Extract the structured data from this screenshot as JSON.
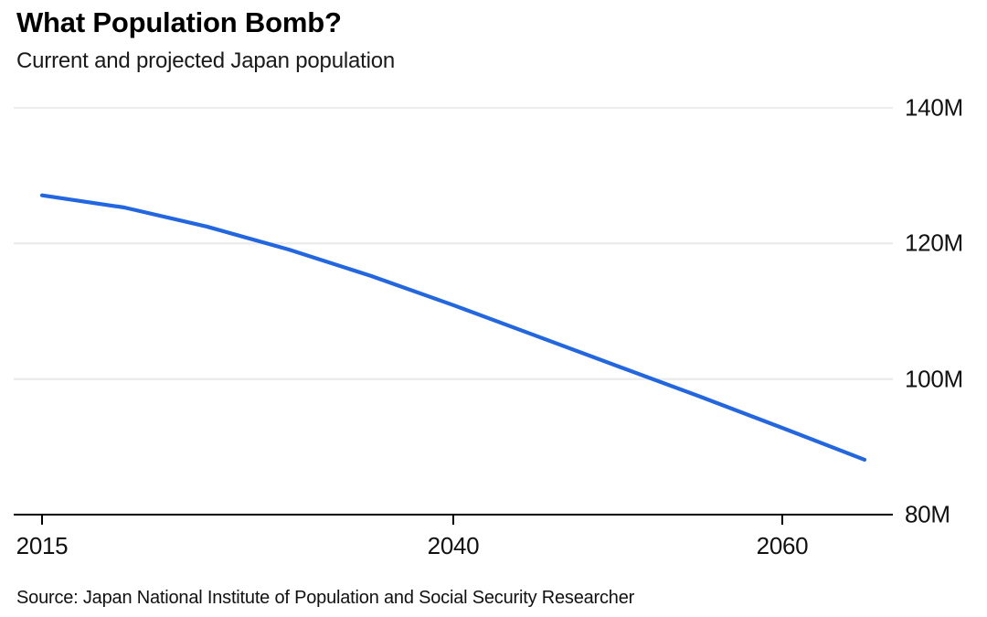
{
  "chart_data": {
    "type": "line",
    "title": "What Population Bomb?",
    "subtitle": "Current and projected Japan population",
    "source": "Source: Japan National Institute of Population and Social Security Researcher",
    "x": [
      2015,
      2020,
      2025,
      2030,
      2035,
      2040,
      2045,
      2050,
      2055,
      2060,
      2065
    ],
    "series": [
      {
        "name": "Japan population (millions)",
        "values": [
          127.1,
          125.3,
          122.5,
          119.1,
          115.2,
          110.9,
          106.4,
          101.9,
          97.4,
          92.8,
          88.1
        ]
      }
    ],
    "xlabel": "",
    "ylabel": "",
    "xlim": [
      2015,
      2066.5
    ],
    "ylim": [
      80,
      140
    ],
    "xticks": [
      2015,
      2040,
      2060
    ],
    "yticks": [
      {
        "value": 80,
        "label": "80M"
      },
      {
        "value": 100,
        "label": "100M"
      },
      {
        "value": 120,
        "label": "120M"
      },
      {
        "value": 140,
        "label": "140M"
      }
    ],
    "grid": "horizontal",
    "legend": "none",
    "line_color": "#2267e0",
    "grid_color": "#ececec",
    "axis_color": "#000000"
  }
}
